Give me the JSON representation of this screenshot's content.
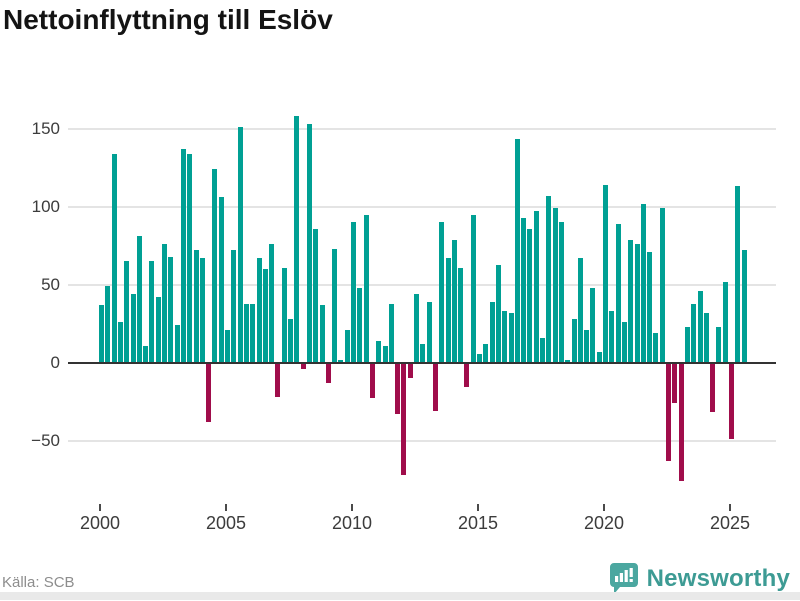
{
  "title": "Nettoinflyttning till Eslöv",
  "source": "Källa: SCB",
  "branding": {
    "name": "Newsworthy"
  },
  "colors": {
    "positive": "#00A094",
    "negative": "#A00D4B",
    "gridline": "#E4E4E4",
    "zero_line": "#333333",
    "axis_text": "#3C3C3C",
    "title_text": "#141414",
    "source_text": "#8D8D8D",
    "brand_teal": "#4BA7A0"
  },
  "chart_data": {
    "type": "bar",
    "title": "Nettoinflyttning till Eslöv",
    "frequency": "quarterly",
    "x_start": "2000-Q1",
    "x_end": "2025-Q3",
    "values": [
      37,
      49,
      134,
      26,
      65,
      44,
      81,
      11,
      65,
      42,
      76,
      68,
      24,
      137,
      134,
      72,
      67,
      -37,
      124,
      106,
      21,
      72,
      151,
      38,
      38,
      67,
      60,
      76,
      -21,
      61,
      28,
      158,
      -3,
      153,
      86,
      37,
      -12,
      73,
      2,
      21,
      90,
      48,
      95,
      -22,
      14,
      11,
      38,
      -32,
      -71,
      -9,
      44,
      12,
      39,
      -30,
      90,
      67,
      79,
      61,
      -15,
      95,
      6,
      12,
      39,
      63,
      33,
      32,
      143,
      93,
      86,
      97,
      16,
      107,
      99,
      90,
      2,
      28,
      67,
      21,
      48,
      7,
      114,
      33,
      89,
      26,
      79,
      76,
      102,
      71,
      19,
      99,
      -62,
      -25,
      -75,
      23,
      38,
      46,
      32,
      -31,
      23,
      52,
      -48,
      113,
      72
    ],
    "x_tick_labels": [
      "2000",
      "2005",
      "2010",
      "2015",
      "2020",
      "2025"
    ],
    "y_tick_labels": [
      "150",
      "100",
      "50",
      "0",
      "−50"
    ],
    "y_ticks": [
      150,
      100,
      50,
      0,
      -50
    ],
    "ylim": [
      -80,
      160
    ],
    "grid": true,
    "legend": "none",
    "positive_color": "#00A094",
    "negative_color": "#A00D4B"
  }
}
